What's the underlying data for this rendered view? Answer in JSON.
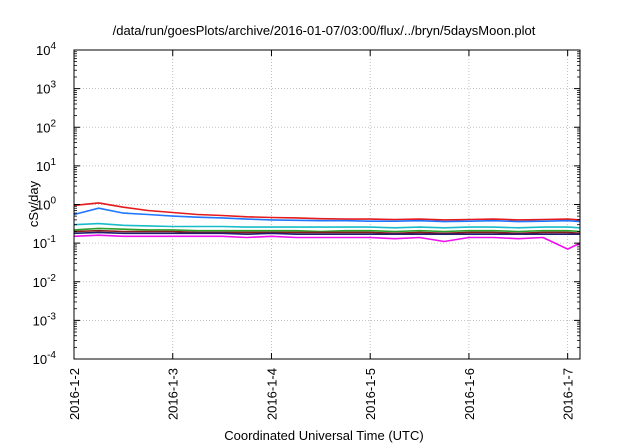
{
  "chart_data": {
    "type": "line",
    "title": "/data/run/goesPlots/archive/2016-01-07/03:00/flux/../bryn/5daysMoon.plot",
    "xlabel": "Coordinated Universal Time (UTC)",
    "ylabel": "cSv/day",
    "yscale": "log",
    "ylim": [
      0.0001,
      10000
    ],
    "xlim": [
      "2016-01-02T00:00",
      "2016-01-07T03:00"
    ],
    "grid": true,
    "legend": "none",
    "y_ticks": [
      {
        "value": 0.0001,
        "base": "10",
        "exp": "-4"
      },
      {
        "value": 0.001,
        "base": "10",
        "exp": "-3"
      },
      {
        "value": 0.01,
        "base": "10",
        "exp": "-2"
      },
      {
        "value": 0.1,
        "base": "10",
        "exp": "-1"
      },
      {
        "value": 1,
        "base": "10",
        "exp": "0"
      },
      {
        "value": 10,
        "base": "10",
        "exp": "1"
      },
      {
        "value": 100,
        "base": "10",
        "exp": "2"
      },
      {
        "value": 1000,
        "base": "10",
        "exp": "3"
      },
      {
        "value": 10000,
        "base": "10",
        "exp": "4"
      }
    ],
    "x_ticks": [
      {
        "value": "2016-01-02T00:00",
        "label": "2016-1-2"
      },
      {
        "value": "2016-01-03T00:00",
        "label": "2016-1-3"
      },
      {
        "value": "2016-01-04T00:00",
        "label": "2016-1-4"
      },
      {
        "value": "2016-01-05T00:00",
        "label": "2016-1-5"
      },
      {
        "value": "2016-01-06T00:00",
        "label": "2016-1-6"
      },
      {
        "value": "2016-01-07T00:00",
        "label": "2016-1-7"
      }
    ],
    "x": [
      "2016-01-02T00:00",
      "2016-01-02T06:00",
      "2016-01-02T12:00",
      "2016-01-02T18:00",
      "2016-01-03T00:00",
      "2016-01-03T06:00",
      "2016-01-03T12:00",
      "2016-01-03T18:00",
      "2016-01-04T00:00",
      "2016-01-04T06:00",
      "2016-01-04T12:00",
      "2016-01-04T18:00",
      "2016-01-05T00:00",
      "2016-01-05T06:00",
      "2016-01-05T12:00",
      "2016-01-05T18:00",
      "2016-01-06T00:00",
      "2016-01-06T06:00",
      "2016-01-06T12:00",
      "2016-01-06T18:00",
      "2016-01-07T00:00",
      "2016-01-07T03:00"
    ],
    "series": [
      {
        "color": "#e41a1c",
        "values": [
          0.95,
          1.1,
          0.85,
          0.7,
          0.62,
          0.55,
          0.52,
          0.48,
          0.46,
          0.45,
          0.43,
          0.42,
          0.42,
          0.41,
          0.42,
          0.4,
          0.41,
          0.42,
          0.4,
          0.41,
          0.42,
          0.4
        ]
      },
      {
        "color": "#1f77ff",
        "values": [
          0.55,
          0.8,
          0.6,
          0.55,
          0.5,
          0.47,
          0.45,
          0.42,
          0.4,
          0.39,
          0.38,
          0.38,
          0.37,
          0.37,
          0.38,
          0.36,
          0.37,
          0.38,
          0.36,
          0.37,
          0.38,
          0.36
        ]
      },
      {
        "color": "#17bcc8",
        "values": [
          0.3,
          0.32,
          0.29,
          0.28,
          0.27,
          0.27,
          0.27,
          0.26,
          0.26,
          0.26,
          0.26,
          0.26,
          0.26,
          0.25,
          0.26,
          0.25,
          0.26,
          0.26,
          0.25,
          0.26,
          0.26,
          0.25
        ]
      },
      {
        "color": "#2ca02c",
        "values": [
          0.22,
          0.24,
          0.23,
          0.22,
          0.22,
          0.21,
          0.21,
          0.21,
          0.21,
          0.21,
          0.2,
          0.21,
          0.21,
          0.2,
          0.21,
          0.2,
          0.21,
          0.21,
          0.2,
          0.21,
          0.21,
          0.2
        ]
      },
      {
        "color": "#8b1a1a",
        "values": [
          0.2,
          0.21,
          0.2,
          0.2,
          0.2,
          0.19,
          0.19,
          0.19,
          0.19,
          0.19,
          0.19,
          0.19,
          0.19,
          0.18,
          0.19,
          0.18,
          0.19,
          0.19,
          0.18,
          0.19,
          0.19,
          0.18
        ]
      },
      {
        "color": "#1f1f6e",
        "values": [
          0.18,
          0.19,
          0.18,
          0.18,
          0.18,
          0.18,
          0.18,
          0.17,
          0.18,
          0.17,
          0.17,
          0.17,
          0.17,
          0.17,
          0.17,
          0.17,
          0.17,
          0.17,
          0.17,
          0.17,
          0.17,
          0.17
        ]
      },
      {
        "color": "#ee10ee",
        "values": [
          0.15,
          0.16,
          0.15,
          0.15,
          0.15,
          0.15,
          0.15,
          0.14,
          0.15,
          0.14,
          0.14,
          0.14,
          0.14,
          0.13,
          0.14,
          0.11,
          0.14,
          0.14,
          0.13,
          0.14,
          0.07,
          0.1
        ]
      }
    ]
  }
}
